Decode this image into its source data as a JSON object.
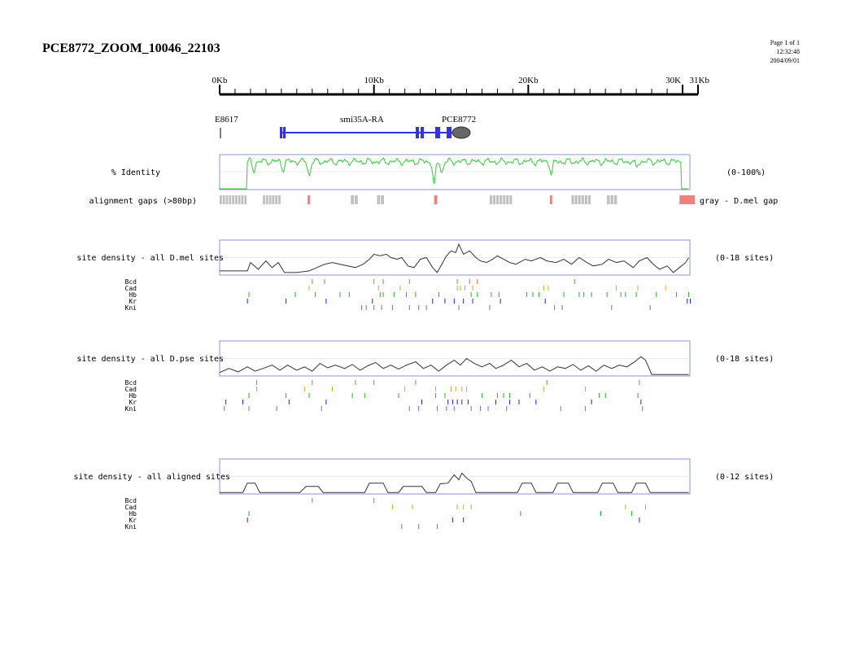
{
  "header": {
    "title": "PCE8772_ZOOM_10046_22103",
    "page": "Page 1 of 1",
    "time": "12:32:48",
    "date": "2004/09/01"
  },
  "ruler": {
    "min_kb": 0,
    "max_kb": 31,
    "labels": [
      "0Kb",
      "10Kb",
      "20Kb",
      "30K",
      "31Kb"
    ],
    "label_kb": [
      0,
      10,
      20,
      30,
      31
    ]
  },
  "genes": {
    "left_marker": "E8617",
    "gene": "smi35A-RA",
    "target": "PCE8772",
    "gene_color": "#3333e0",
    "target_color": "#666666"
  },
  "identity": {
    "label": "% Identity",
    "range": "(0-100%)",
    "color": "#33cc33",
    "gaps_label": "alignment gaps (>80bp)",
    "gaps_legend": "gray - D.mel gap",
    "gaps": [
      {
        "start_kb": 0.0,
        "end_kb": 1.8,
        "kind": "gray"
      },
      {
        "start_kb": 2.8,
        "end_kb": 4.0,
        "kind": "gray"
      },
      {
        "start_kb": 5.7,
        "end_kb": 5.85,
        "kind": "red"
      },
      {
        "start_kb": 8.5,
        "end_kb": 9.0,
        "kind": "gray"
      },
      {
        "start_kb": 10.2,
        "end_kb": 10.7,
        "kind": "gray"
      },
      {
        "start_kb": 13.9,
        "end_kb": 14.1,
        "kind": "red"
      },
      {
        "start_kb": 17.5,
        "end_kb": 19.0,
        "kind": "gray"
      },
      {
        "start_kb": 21.4,
        "end_kb": 21.55,
        "kind": "red"
      },
      {
        "start_kb": 22.8,
        "end_kb": 24.1,
        "kind": "gray"
      },
      {
        "start_kb": 25.1,
        "end_kb": 25.8,
        "kind": "gray"
      },
      {
        "start_kb": 29.8,
        "end_kb": 30.8,
        "kind": "red"
      }
    ],
    "gray_color": "#c0c0c0",
    "red_color": "#f08080"
  },
  "panels": [
    {
      "label": "site density - all D.mel sites",
      "range": "(0-18 sites)",
      "factors": [
        "Bcd",
        "Cad",
        "Hb",
        "Kr",
        "Kni"
      ],
      "ticks": {
        "Bcd": [
          6.0,
          6.8,
          10.0,
          10.6,
          12.3,
          15.4,
          16.2,
          16.7,
          23.0
        ],
        "Cad": [
          5.8,
          10.3,
          11.7,
          15.4,
          15.6,
          15.9,
          16.4,
          21.0,
          21.3,
          25.7,
          27.1,
          28.9
        ],
        "Hb": [
          1.9,
          4.9,
          6.2,
          7.8,
          8.4,
          10.4,
          10.6,
          11.3,
          12.1,
          12.7,
          14.2,
          16.3,
          16.7,
          17.6,
          18.1,
          19.9,
          20.3,
          20.7,
          22.3,
          23.3,
          23.6,
          24.1,
          25.1,
          26.0,
          26.3,
          27.0,
          28.3,
          29.6,
          30.4
        ],
        "Kr": [
          1.8,
          4.3,
          6.9,
          9.9,
          13.8,
          14.6,
          15.2,
          15.8,
          16.4,
          18.2,
          21.1,
          30.3,
          30.5
        ],
        "Kni": [
          9.2,
          9.5,
          10.0,
          10.5,
          11.2,
          12.3,
          12.9,
          13.4,
          15.5,
          17.5,
          21.7,
          22.2,
          25.4,
          27.9
        ]
      },
      "density": [
        [
          0,
          0.1
        ],
        [
          1.8,
          0.1
        ],
        [
          2.0,
          0.35
        ],
        [
          2.5,
          0.15
        ],
        [
          3.0,
          0.4
        ],
        [
          3.4,
          0.2
        ],
        [
          3.8,
          0.35
        ],
        [
          4.2,
          0.05
        ],
        [
          5.0,
          0.05
        ],
        [
          5.8,
          0.1
        ],
        [
          6.3,
          0.2
        ],
        [
          6.8,
          0.3
        ],
        [
          7.3,
          0.35
        ],
        [
          7.8,
          0.3
        ],
        [
          8.3,
          0.25
        ],
        [
          8.8,
          0.2
        ],
        [
          9.3,
          0.3
        ],
        [
          9.7,
          0.45
        ],
        [
          10.0,
          0.6
        ],
        [
          10.4,
          0.55
        ],
        [
          10.8,
          0.6
        ],
        [
          11.1,
          0.5
        ],
        [
          11.5,
          0.45
        ],
        [
          11.8,
          0.5
        ],
        [
          12.2,
          0.25
        ],
        [
          12.6,
          0.2
        ],
        [
          13.0,
          0.45
        ],
        [
          13.4,
          0.5
        ],
        [
          13.8,
          0.2
        ],
        [
          14.1,
          0.05
        ],
        [
          14.4,
          0.3
        ],
        [
          14.7,
          0.55
        ],
        [
          15.0,
          0.7
        ],
        [
          15.3,
          0.65
        ],
        [
          15.5,
          0.9
        ],
        [
          15.8,
          0.6
        ],
        [
          16.2,
          0.7
        ],
        [
          16.6,
          0.5
        ],
        [
          16.9,
          0.4
        ],
        [
          17.3,
          0.35
        ],
        [
          17.7,
          0.45
        ],
        [
          18.0,
          0.55
        ],
        [
          18.4,
          0.45
        ],
        [
          18.8,
          0.35
        ],
        [
          19.2,
          0.3
        ],
        [
          19.8,
          0.45
        ],
        [
          20.2,
          0.4
        ],
        [
          20.8,
          0.5
        ],
        [
          21.2,
          0.4
        ],
        [
          21.8,
          0.35
        ],
        [
          22.3,
          0.45
        ],
        [
          22.8,
          0.3
        ],
        [
          23.3,
          0.5
        ],
        [
          23.8,
          0.35
        ],
        [
          24.2,
          0.25
        ],
        [
          24.8,
          0.3
        ],
        [
          25.2,
          0.45
        ],
        [
          25.7,
          0.35
        ],
        [
          26.2,
          0.4
        ],
        [
          26.8,
          0.2
        ],
        [
          27.2,
          0.4
        ],
        [
          27.7,
          0.5
        ],
        [
          28.1,
          0.3
        ],
        [
          28.5,
          0.15
        ],
        [
          29.0,
          0.25
        ],
        [
          29.4,
          0.05
        ],
        [
          29.8,
          0.2
        ],
        [
          30.2,
          0.35
        ],
        [
          30.4,
          0.5
        ]
      ]
    },
    {
      "label": "site density - all D.pse sites",
      "range": "(0-18 sites)",
      "factors": [
        "Bcd",
        "Cad",
        "Hb",
        "Kr",
        "Kni"
      ],
      "ticks": {
        "Bcd": [
          2.4,
          6.0,
          8.8,
          10.0,
          12.7,
          21.2,
          27.2
        ],
        "Cad": [
          2.4,
          5.5,
          7.3,
          12.0,
          14.0,
          15.0,
          15.3,
          15.7,
          16.0,
          21.0,
          23.7
        ],
        "Hb": [
          1.9,
          4.3,
          5.8,
          8.6,
          9.4,
          11.6,
          14.0,
          14.6,
          17.0,
          18.0,
          18.4,
          18.8,
          20.1,
          24.6,
          25.0,
          27.1
        ],
        "Kr": [
          0.4,
          1.5,
          4.5,
          6.9,
          13.1,
          14.8,
          15.1,
          15.4,
          15.7,
          16.1,
          17.9,
          18.8,
          19.4,
          20.5,
          24.1,
          27.3
        ],
        "Kni": [
          0.3,
          1.9,
          3.7,
          6.6,
          12.3,
          12.9,
          14.1,
          14.7,
          15.2,
          16.3,
          16.9,
          17.4,
          18.6,
          22.1,
          23.7,
          27.4
        ]
      },
      "density": [
        [
          0,
          0.08
        ],
        [
          0.6,
          0.2
        ],
        [
          1.2,
          0.1
        ],
        [
          1.8,
          0.25
        ],
        [
          2.3,
          0.12
        ],
        [
          2.8,
          0.2
        ],
        [
          3.4,
          0.3
        ],
        [
          3.9,
          0.15
        ],
        [
          4.4,
          0.3
        ],
        [
          5.0,
          0.15
        ],
        [
          5.5,
          0.25
        ],
        [
          6.0,
          0.12
        ],
        [
          6.5,
          0.35
        ],
        [
          7.0,
          0.22
        ],
        [
          7.5,
          0.3
        ],
        [
          8.1,
          0.2
        ],
        [
          8.6,
          0.32
        ],
        [
          9.1,
          0.15
        ],
        [
          9.6,
          0.28
        ],
        [
          10.1,
          0.38
        ],
        [
          10.6,
          0.2
        ],
        [
          11.1,
          0.3
        ],
        [
          11.6,
          0.18
        ],
        [
          12.1,
          0.3
        ],
        [
          12.7,
          0.4
        ],
        [
          13.2,
          0.2
        ],
        [
          13.7,
          0.3
        ],
        [
          14.2,
          0.12
        ],
        [
          14.7,
          0.3
        ],
        [
          15.2,
          0.45
        ],
        [
          15.6,
          0.3
        ],
        [
          16.0,
          0.5
        ],
        [
          16.5,
          0.35
        ],
        [
          17.0,
          0.25
        ],
        [
          17.5,
          0.35
        ],
        [
          17.9,
          0.2
        ],
        [
          18.4,
          0.3
        ],
        [
          18.9,
          0.45
        ],
        [
          19.4,
          0.25
        ],
        [
          19.9,
          0.35
        ],
        [
          20.4,
          0.15
        ],
        [
          20.9,
          0.25
        ],
        [
          21.4,
          0.12
        ],
        [
          21.9,
          0.25
        ],
        [
          22.4,
          0.2
        ],
        [
          22.9,
          0.32
        ],
        [
          23.4,
          0.15
        ],
        [
          23.9,
          0.28
        ],
        [
          24.4,
          0.12
        ],
        [
          24.9,
          0.3
        ],
        [
          25.4,
          0.2
        ],
        [
          25.9,
          0.3
        ],
        [
          26.4,
          0.25
        ],
        [
          26.9,
          0.4
        ],
        [
          27.3,
          0.55
        ],
        [
          27.6,
          0.45
        ],
        [
          28.0,
          0.02
        ],
        [
          30.4,
          0.02
        ]
      ]
    },
    {
      "label": "site density - all aligned sites",
      "range": "(0-12 sites)",
      "factors": [
        "Bcd",
        "Cad",
        "Hb",
        "Kr",
        "Kni"
      ],
      "ticks": {
        "Bcd": [
          6.0,
          10.0
        ],
        "Cad": [
          11.2,
          12.5,
          15.4,
          15.8,
          16.3,
          26.3,
          27.6
        ],
        "Hb": [
          1.9,
          19.5,
          24.7,
          26.7
        ],
        "Kr": [
          1.8,
          15.1,
          15.8,
          27.2
        ],
        "Kni": [
          11.8,
          12.9,
          14.1
        ]
      },
      "density": [
        [
          0,
          0.02
        ],
        [
          1.5,
          0.02
        ],
        [
          1.8,
          0.3
        ],
        [
          2.3,
          0.3
        ],
        [
          2.6,
          0.02
        ],
        [
          5.2,
          0.02
        ],
        [
          5.6,
          0.2
        ],
        [
          6.4,
          0.2
        ],
        [
          6.7,
          0.02
        ],
        [
          9.4,
          0.02
        ],
        [
          9.7,
          0.3
        ],
        [
          10.6,
          0.3
        ],
        [
          10.9,
          0.02
        ],
        [
          11.6,
          0.02
        ],
        [
          11.9,
          0.2
        ],
        [
          13.1,
          0.2
        ],
        [
          13.4,
          0.02
        ],
        [
          14.0,
          0.02
        ],
        [
          14.3,
          0.28
        ],
        [
          14.8,
          0.3
        ],
        [
          15.2,
          0.55
        ],
        [
          15.5,
          0.4
        ],
        [
          15.7,
          0.6
        ],
        [
          16.0,
          0.45
        ],
        [
          16.3,
          0.35
        ],
        [
          16.6,
          0.02
        ],
        [
          19.3,
          0.02
        ],
        [
          19.6,
          0.3
        ],
        [
          20.2,
          0.3
        ],
        [
          20.5,
          0.02
        ],
        [
          21.6,
          0.02
        ],
        [
          21.9,
          0.3
        ],
        [
          22.6,
          0.3
        ],
        [
          22.9,
          0.02
        ],
        [
          24.5,
          0.02
        ],
        [
          24.8,
          0.3
        ],
        [
          25.5,
          0.3
        ],
        [
          25.8,
          0.02
        ],
        [
          26.7,
          0.02
        ],
        [
          27.0,
          0.3
        ],
        [
          27.6,
          0.3
        ],
        [
          27.9,
          0.02
        ],
        [
          30.4,
          0.02
        ]
      ]
    }
  ],
  "factor_colors": {
    "Bcd": "#f06020",
    "Cad": "#e0a020",
    "Hb": "#20b020",
    "Kr": "#2020e0",
    "Kni": "#8060e0"
  }
}
